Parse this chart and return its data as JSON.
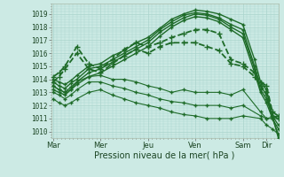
{
  "xlabel": "Pression niveau de la mer( hPa )",
  "ylim": [
    1009.5,
    1019.8
  ],
  "yticks": [
    1010,
    1011,
    1012,
    1013,
    1014,
    1015,
    1016,
    1017,
    1018,
    1019
  ],
  "xtick_labels": [
    "Mar",
    "Mer",
    "Jeu",
    "Ven",
    "Sam",
    "Dir"
  ],
  "xtick_positions": [
    0,
    48,
    96,
    144,
    192,
    216
  ],
  "bg_color": "#cceae4",
  "grid_color": "#aad4cc",
  "line_color": "#1e6b28",
  "xlim": [
    -2,
    228
  ],
  "series": [
    {
      "x": [
        0,
        6,
        12,
        18,
        24,
        36,
        48,
        60,
        72,
        84,
        96,
        108,
        120,
        132,
        144,
        156,
        168,
        180,
        192,
        204,
        210,
        216,
        222,
        228
      ],
      "y": [
        1014.0,
        1013.8,
        1013.6,
        1013.9,
        1014.3,
        1015.0,
        1015.2,
        1015.8,
        1016.2,
        1016.8,
        1017.2,
        1017.9,
        1018.6,
        1019.0,
        1019.3,
        1019.2,
        1019.0,
        1018.6,
        1018.2,
        1015.5,
        1013.8,
        1013.2,
        1011.2,
        1009.5
      ],
      "style": "-",
      "marker": "+",
      "lw": 1.0,
      "ms": 3
    },
    {
      "x": [
        0,
        6,
        12,
        18,
        24,
        36,
        48,
        60,
        72,
        84,
        96,
        108,
        120,
        132,
        144,
        156,
        168,
        180,
        192,
        204,
        210,
        216,
        222,
        228
      ],
      "y": [
        1013.8,
        1013.5,
        1013.3,
        1013.7,
        1014.0,
        1014.8,
        1015.0,
        1015.5,
        1016.0,
        1016.5,
        1017.0,
        1017.8,
        1018.4,
        1018.9,
        1019.1,
        1019.0,
        1018.7,
        1018.2,
        1017.8,
        1015.0,
        1013.5,
        1012.8,
        1011.0,
        1009.8
      ],
      "style": "-",
      "marker": "+",
      "lw": 1.0,
      "ms": 3
    },
    {
      "x": [
        0,
        6,
        12,
        18,
        24,
        36,
        48,
        60,
        72,
        84,
        96,
        108,
        120,
        132,
        144,
        156,
        168,
        180,
        192,
        204,
        210,
        216,
        222,
        228
      ],
      "y": [
        1013.5,
        1013.2,
        1013.0,
        1013.4,
        1013.8,
        1014.5,
        1014.8,
        1015.3,
        1015.8,
        1016.3,
        1016.8,
        1017.6,
        1018.2,
        1018.7,
        1019.0,
        1018.9,
        1018.6,
        1018.0,
        1017.5,
        1014.8,
        1013.2,
        1012.5,
        1011.2,
        1010.5
      ],
      "style": "-",
      "marker": "+",
      "lw": 1.0,
      "ms": 3
    },
    {
      "x": [
        0,
        6,
        12,
        18,
        24,
        36,
        48,
        60,
        72,
        84,
        96,
        108,
        120,
        132,
        144,
        156,
        168,
        180,
        192,
        204,
        210,
        216,
        222,
        228
      ],
      "y": [
        1013.2,
        1013.0,
        1012.8,
        1013.2,
        1013.6,
        1014.2,
        1014.5,
        1015.0,
        1015.5,
        1016.0,
        1016.5,
        1017.3,
        1018.0,
        1018.5,
        1018.8,
        1018.7,
        1018.4,
        1017.8,
        1017.2,
        1014.5,
        1013.0,
        1012.2,
        1011.0,
        1010.2
      ],
      "style": "-",
      "marker": "+",
      "lw": 1.0,
      "ms": 3
    },
    {
      "x": [
        0,
        6,
        12,
        24,
        36,
        48,
        60,
        72,
        84,
        96,
        108,
        120,
        132,
        144,
        156,
        168,
        180,
        192,
        204,
        210,
        216,
        222,
        228
      ],
      "y": [
        1014.2,
        1014.5,
        1015.0,
        1016.5,
        1015.2,
        1014.8,
        1015.5,
        1016.3,
        1016.8,
        1016.5,
        1016.8,
        1017.2,
        1017.5,
        1017.8,
        1017.8,
        1017.5,
        1015.5,
        1015.2,
        1014.5,
        1013.8,
        1013.5,
        1011.5,
        1011.2
      ],
      "style": "--",
      "marker": "+",
      "lw": 1.3,
      "ms": 4
    },
    {
      "x": [
        0,
        6,
        12,
        24,
        36,
        48,
        60,
        72,
        84,
        96,
        108,
        120,
        132,
        144,
        156,
        168,
        180,
        192,
        204,
        210,
        216,
        222,
        228
      ],
      "y": [
        1013.8,
        1014.2,
        1014.8,
        1016.0,
        1014.8,
        1014.5,
        1015.2,
        1015.8,
        1016.3,
        1016.0,
        1016.5,
        1016.8,
        1016.8,
        1016.8,
        1016.5,
        1016.2,
        1015.2,
        1015.0,
        1014.2,
        1013.5,
        1013.0,
        1011.2,
        1011.0
      ],
      "style": "--",
      "marker": "+",
      "lw": 1.3,
      "ms": 4
    },
    {
      "x": [
        0,
        6,
        12,
        18,
        24,
        36,
        48,
        60,
        72,
        84,
        96,
        108,
        120,
        132,
        144,
        156,
        168,
        180,
        192,
        210,
        216,
        228
      ],
      "y": [
        1013.5,
        1013.2,
        1013.0,
        1013.2,
        1013.8,
        1014.2,
        1014.3,
        1014.0,
        1014.0,
        1013.8,
        1013.5,
        1013.3,
        1013.0,
        1013.2,
        1013.0,
        1013.0,
        1013.0,
        1012.8,
        1013.2,
        1011.5,
        1011.0,
        1011.2
      ],
      "style": "-",
      "marker": "+",
      "lw": 0.8,
      "ms": 3
    },
    {
      "x": [
        0,
        6,
        12,
        18,
        24,
        36,
        48,
        60,
        72,
        84,
        96,
        108,
        120,
        132,
        144,
        156,
        168,
        180,
        192,
        210,
        216,
        228
      ],
      "y": [
        1013.0,
        1012.8,
        1012.5,
        1012.8,
        1013.2,
        1013.8,
        1013.8,
        1013.5,
        1013.3,
        1013.0,
        1012.8,
        1012.5,
        1012.3,
        1012.2,
        1012.0,
        1012.0,
        1012.0,
        1011.8,
        1012.0,
        1011.2,
        1011.0,
        1011.0
      ],
      "style": "-",
      "marker": "+",
      "lw": 0.8,
      "ms": 3
    },
    {
      "x": [
        0,
        6,
        12,
        18,
        24,
        36,
        48,
        60,
        72,
        84,
        96,
        108,
        120,
        132,
        144,
        156,
        168,
        180,
        192,
        210,
        216,
        222,
        228
      ],
      "y": [
        1012.5,
        1012.2,
        1012.0,
        1012.2,
        1012.5,
        1013.0,
        1013.2,
        1012.8,
        1012.5,
        1012.2,
        1012.0,
        1011.8,
        1011.5,
        1011.3,
        1011.2,
        1011.0,
        1011.0,
        1011.0,
        1011.2,
        1011.0,
        1010.5,
        1010.2,
        1009.8
      ],
      "style": "-",
      "marker": "+",
      "lw": 0.8,
      "ms": 3
    }
  ]
}
